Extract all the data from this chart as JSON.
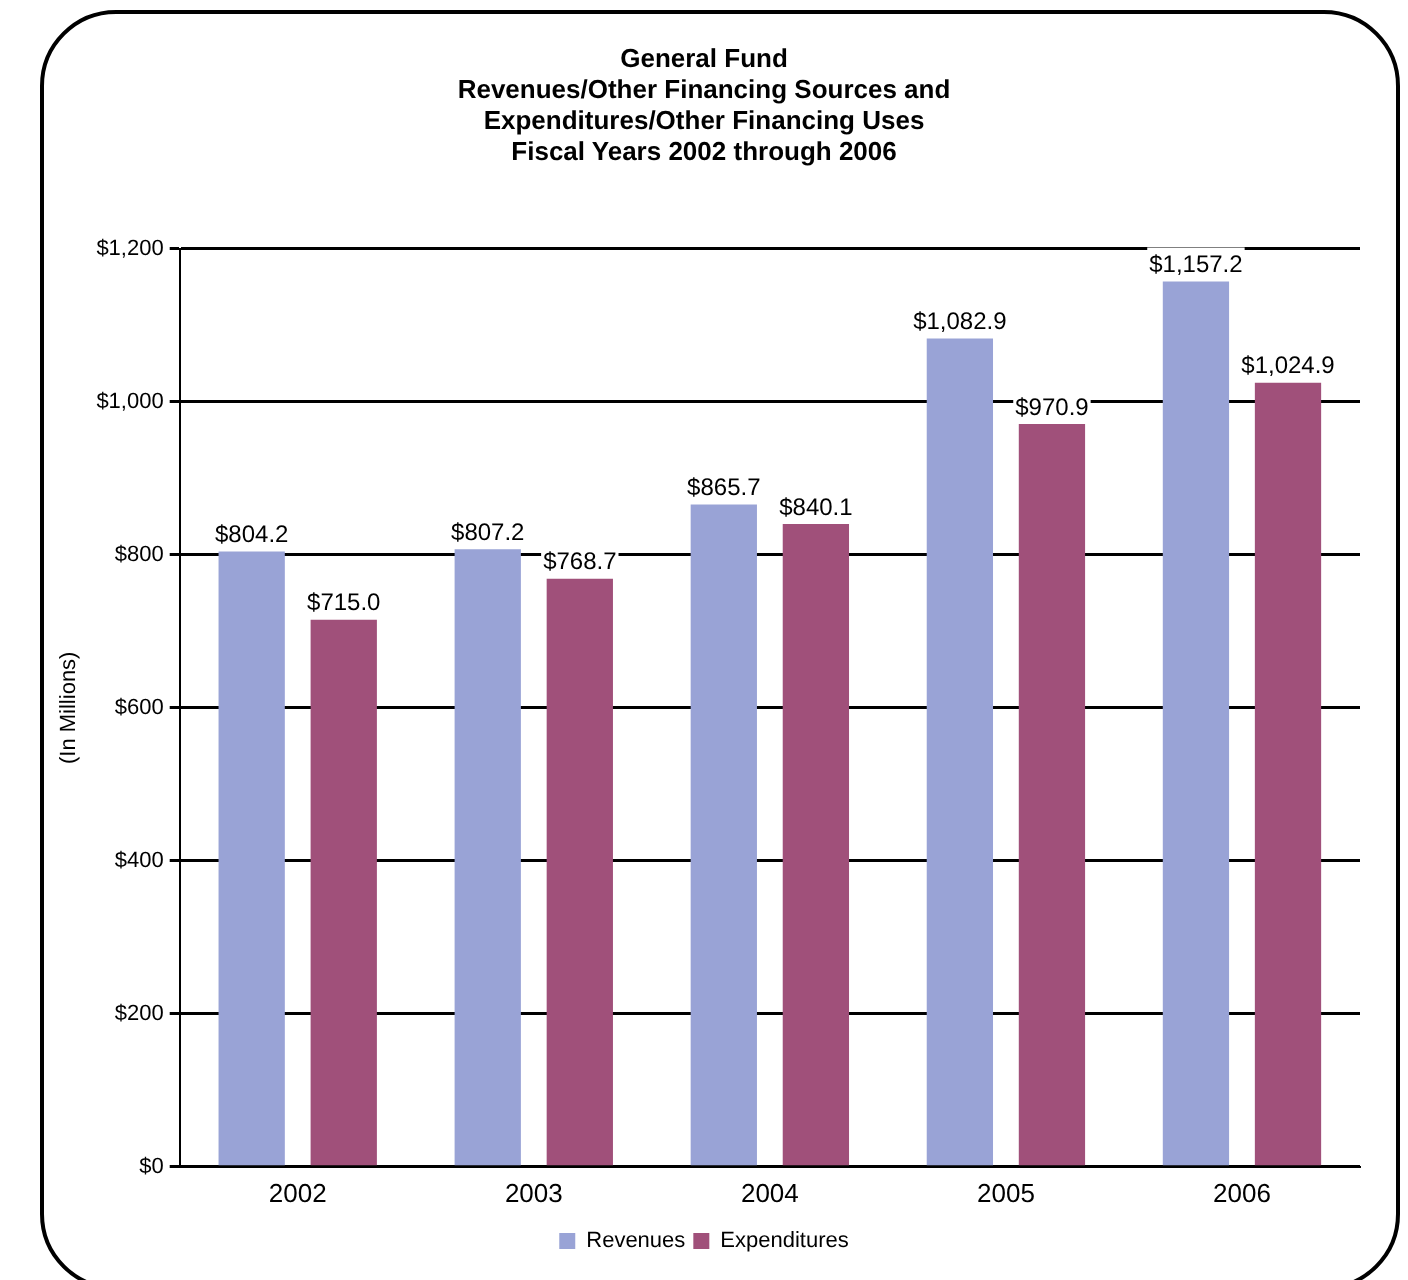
{
  "chart_data": {
    "type": "bar",
    "title": [
      "General Fund",
      "Revenues/Other Financing Sources and",
      "Expenditures/Other Financing Uses",
      "Fiscal Years 2002 through 2006"
    ],
    "ylabel": "(In Millions)",
    "categories": [
      "2002",
      "2003",
      "2004",
      "2005",
      "2006"
    ],
    "series": [
      {
        "name": "Revenues",
        "color": "#99a3d6",
        "values": [
          804.2,
          807.2,
          865.7,
          1082.9,
          1157.2
        ],
        "value_labels": [
          "$804.2",
          "$807.2",
          "$865.7",
          "$1,082.9",
          "$1,157.2"
        ]
      },
      {
        "name": "Expenditures",
        "color": "#a0507a",
        "values": [
          715.0,
          768.7,
          840.1,
          970.9,
          1024.9
        ],
        "value_labels": [
          "$715.0",
          "$768.7",
          "$840.1",
          "$970.9",
          "$1,024.9"
        ]
      }
    ],
    "ylim": [
      0,
      1200
    ],
    "yticks": [
      {
        "value": 0,
        "label": "$0"
      },
      {
        "value": 200,
        "label": "$200"
      },
      {
        "value": 400,
        "label": "$400"
      },
      {
        "value": 600,
        "label": "$600"
      },
      {
        "value": 800,
        "label": "$800"
      },
      {
        "value": 1000,
        "label": "$1,000"
      },
      {
        "value": 1200,
        "label": "$1,200"
      }
    ],
    "grid": "y",
    "legend": "bottom"
  }
}
